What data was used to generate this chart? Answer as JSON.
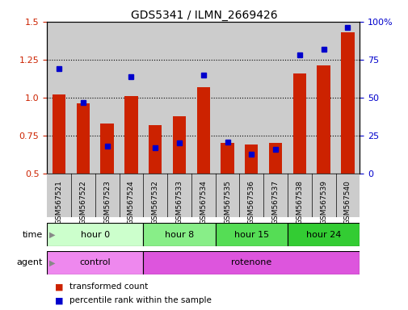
{
  "title": "GDS5341 / ILMN_2669426",
  "samples": [
    "GSM567521",
    "GSM567522",
    "GSM567523",
    "GSM567524",
    "GSM567532",
    "GSM567533",
    "GSM567534",
    "GSM567535",
    "GSM567536",
    "GSM567537",
    "GSM567538",
    "GSM567539",
    "GSM567540"
  ],
  "transformed_count": [
    1.02,
    0.96,
    0.83,
    1.01,
    0.82,
    0.88,
    1.07,
    0.7,
    0.69,
    0.7,
    1.16,
    1.21,
    1.43
  ],
  "percentile_rank": [
    69,
    47,
    18,
    64,
    17,
    20,
    65,
    21,
    13,
    16,
    78,
    82,
    96
  ],
  "ylim_left": [
    0.5,
    1.5
  ],
  "ylim_right": [
    0,
    100
  ],
  "yticks_left": [
    0.5,
    0.75,
    1.0,
    1.25,
    1.5
  ],
  "yticks_right": [
    0,
    25,
    50,
    75,
    100
  ],
  "ytick_labels_right": [
    "0",
    "25",
    "50",
    "75",
    "100%"
  ],
  "dotted_lines": [
    0.75,
    1.0,
    1.25
  ],
  "bar_color": "#cc2200",
  "dot_color": "#0000cc",
  "bar_bottom": 0.5,
  "time_groups": [
    {
      "label": "hour 0",
      "start": 0,
      "end": 4,
      "color": "#ccffcc"
    },
    {
      "label": "hour 8",
      "start": 4,
      "end": 7,
      "color": "#88ee88"
    },
    {
      "label": "hour 15",
      "start": 7,
      "end": 10,
      "color": "#55dd55"
    },
    {
      "label": "hour 24",
      "start": 10,
      "end": 13,
      "color": "#33cc33"
    }
  ],
  "agent_groups": [
    {
      "label": "control",
      "start": 0,
      "end": 4,
      "color": "#ee88ee"
    },
    {
      "label": "rotenone",
      "start": 4,
      "end": 13,
      "color": "#dd55dd"
    }
  ],
  "legend_red_label": "transformed count",
  "legend_blue_label": "percentile rank within the sample",
  "time_label": "time",
  "agent_label": "agent",
  "tick_color_left": "#cc2200",
  "tick_color_right": "#0000cc",
  "bar_width": 0.55,
  "sample_bg_color": "#cccccc",
  "grid_bg_color": "#ffffff"
}
